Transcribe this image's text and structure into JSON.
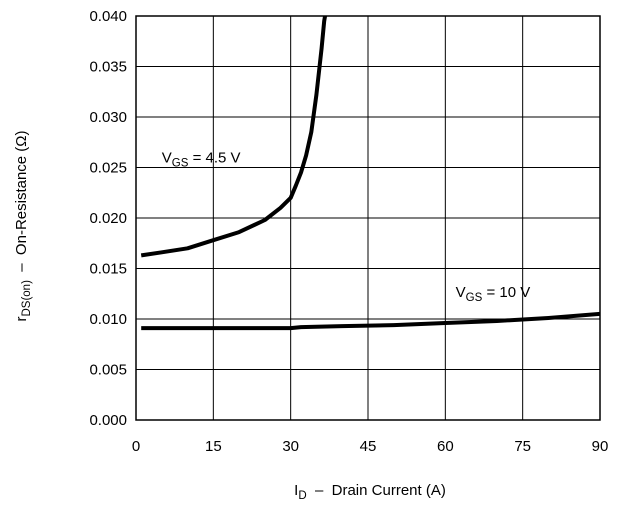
{
  "chart_data": {
    "type": "line",
    "title": "",
    "xlabel": {
      "main": "I",
      "sub": "D",
      "rest": "  –  Drain Current (A)"
    },
    "ylabel": {
      "main": "r",
      "sub": "DS(on)",
      "rest": "  –  On-Resistance (Ω)"
    },
    "xlim": [
      0,
      90
    ],
    "ylim": [
      0.0,
      0.04
    ],
    "xticks": [
      0,
      15,
      30,
      45,
      60,
      75,
      90
    ],
    "xtick_labels": [
      "0",
      "15",
      "30",
      "45",
      "60",
      "75",
      "90"
    ],
    "yticks": [
      0.0,
      0.005,
      0.01,
      0.015,
      0.02,
      0.025,
      0.03,
      0.035,
      0.04
    ],
    "ytick_labels": [
      "0.000",
      "0.005",
      "0.010",
      "0.015",
      "0.020",
      "0.025",
      "0.030",
      "0.035",
      "0.040"
    ],
    "grid": true,
    "series": [
      {
        "name": "V_GS = 4.5 V",
        "label_main": "V",
        "label_sub": "GS",
        "label_rest": " = 4.5 V",
        "label_at": [
          5,
          0.0255
        ],
        "x": [
          1,
          5,
          10,
          15,
          20,
          25,
          28,
          30,
          31,
          32,
          33,
          34,
          35,
          36,
          36.5,
          37
        ],
        "y": [
          0.0163,
          0.0166,
          0.017,
          0.0178,
          0.0186,
          0.0198,
          0.021,
          0.022,
          0.0232,
          0.0245,
          0.0262,
          0.0285,
          0.0322,
          0.0368,
          0.0395,
          0.041
        ]
      },
      {
        "name": "V_GS = 10 V",
        "label_main": "V",
        "label_sub": "GS",
        "label_rest": " = 10 V",
        "label_at": [
          62,
          0.0122
        ],
        "x": [
          1,
          10,
          20,
          30,
          32,
          40,
          50,
          60,
          70,
          80,
          90
        ],
        "y": [
          0.0091,
          0.0091,
          0.0091,
          0.0091,
          0.0092,
          0.0093,
          0.0094,
          0.0096,
          0.0098,
          0.0101,
          0.0105
        ]
      }
    ]
  }
}
